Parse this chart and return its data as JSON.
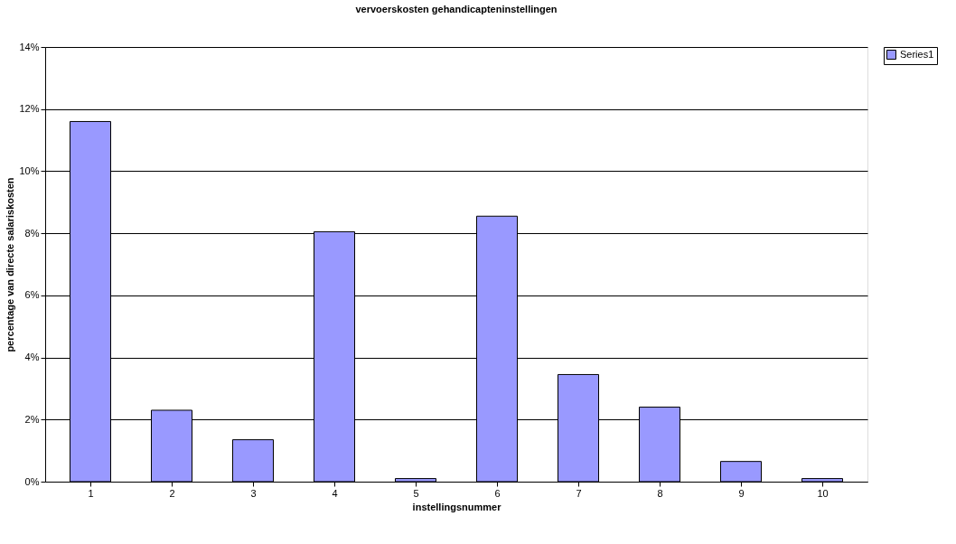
{
  "chart_data": {
    "type": "bar",
    "title": "vervoerskosten gehandicapteninstellingen",
    "xlabel": "instellingsnummer",
    "ylabel": "percentage van directe salariskosten",
    "categories": [
      "1",
      "2",
      "3",
      "4",
      "5",
      "6",
      "7",
      "8",
      "9",
      "10"
    ],
    "series": [
      {
        "name": "Series1",
        "color": "#9999ff",
        "values": [
          11.6,
          2.3,
          1.35,
          8.05,
          0.1,
          8.55,
          3.45,
          2.4,
          0.65,
          0.1
        ]
      }
    ],
    "ylim": [
      0,
      14
    ],
    "yticks": [
      {
        "value": 0,
        "label": "0%"
      },
      {
        "value": 2,
        "label": "2%"
      },
      {
        "value": 4,
        "label": "4%"
      },
      {
        "value": 6,
        "label": "6%"
      },
      {
        "value": 8,
        "label": "8%"
      },
      {
        "value": 10,
        "label": "10%"
      },
      {
        "value": 12,
        "label": "12%"
      },
      {
        "value": 14,
        "label": "14%"
      }
    ],
    "grid": "y",
    "legend": "right"
  }
}
